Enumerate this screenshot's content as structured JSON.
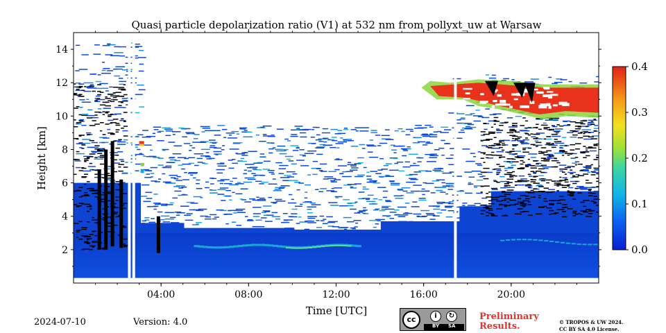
{
  "chart_data": {
    "type": "heatmap",
    "title": "Quasi particle depolarization ratio (V1) at 532 nm from pollyxt_uw at Warsaw",
    "xlabel": "Time [UTC]",
    "ylabel": "Height [km]",
    "x_ticks": [
      "04:00",
      "08:00",
      "12:00",
      "16:00",
      "20:00"
    ],
    "x_range_hours": [
      0,
      24
    ],
    "y_ticks": [
      2,
      4,
      6,
      8,
      10,
      12,
      14
    ],
    "y_range_km": [
      0,
      15
    ],
    "colorbar": {
      "range": [
        0.0,
        0.4
      ],
      "ticks": [
        "0.0",
        "0.1",
        "0.2",
        "0.3",
        "0.4"
      ],
      "colormap": "jet"
    },
    "colors": {
      "low": "#0a3fd6",
      "mid_low": "#18a8d8",
      "mid": "#8cd63c",
      "mid_high": "#f2c21a",
      "high": "#e8321c",
      "no_signal": "#000000",
      "missing": "#ffffff"
    },
    "data_gaps_hours": [
      2.55,
      2.75,
      17.45
    ],
    "features": [
      {
        "description": "Boundary layer low depolarization",
        "time_range": [
          0,
          24
        ],
        "height_range_km": [
          0.3,
          3.2
        ],
        "value": 0.02
      },
      {
        "description": "Elevated layer",
        "time_range": [
          5.5,
          13.0
        ],
        "height_range_km": [
          1.9,
          2.4
        ],
        "value": 0.08
      },
      {
        "description": "Cirrus cloud",
        "time_range": [
          15.9,
          24.0
        ],
        "height_range_km": [
          9.7,
          12.1
        ],
        "value": 0.35
      },
      {
        "description": "Depolarizing aerosol",
        "time_range": [
          3.0,
          3.2
        ],
        "height_range_km": [
          7.0,
          8.5
        ],
        "value": 0.3
      }
    ]
  },
  "footer": {
    "date": "2024-07-10",
    "version": "Version: 4.0",
    "license_badge": {
      "cc": "cc",
      "by": "BY",
      "sa": "SA"
    },
    "preliminary": [
      "Preliminary",
      "Results."
    ],
    "copyright": [
      "© TROPOS & UW 2024.",
      "CC BY SA 4.0 License."
    ]
  }
}
